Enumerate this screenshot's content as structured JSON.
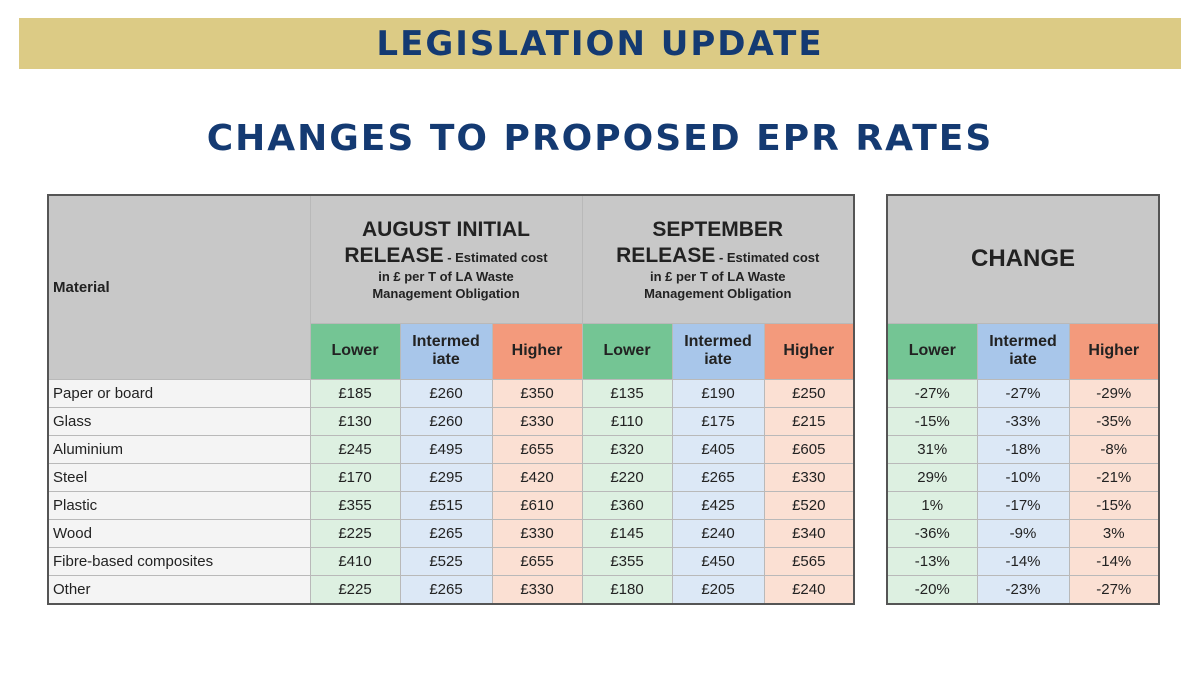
{
  "banner": "LEGISLATION UPDATE",
  "title": "CHANGES TO PROPOSED EPR RATES",
  "table": {
    "material_header": "Material",
    "august": {
      "line1": "AUGUST INITIAL",
      "line2": "RELEASE",
      "line2_suffix": " - Estimated cost",
      "line3": "in £ per T of LA Waste",
      "line4": "Management Obligation"
    },
    "september": {
      "line1": "SEPTEMBER",
      "line2": "RELEASE",
      "line2_suffix": " - Estimated cost",
      "line3": "in £ per T of LA Waste",
      "line4": "Management Obligation"
    },
    "change_header": "CHANGE",
    "sub": {
      "lower": "Lower",
      "intermediate_1": "Intermed",
      "intermediate_2": "iate",
      "higher": "Higher"
    },
    "rows": [
      {
        "material": "Paper or board",
        "aug": [
          "£185",
          "£260",
          "£350"
        ],
        "sep": [
          "£135",
          "£190",
          "£250"
        ],
        "change": [
          "-27%",
          "-27%",
          "-29%"
        ]
      },
      {
        "material": "Glass",
        "aug": [
          "£130",
          "£260",
          "£330"
        ],
        "sep": [
          "£110",
          "£175",
          "£215"
        ],
        "change": [
          "-15%",
          "-33%",
          "-35%"
        ]
      },
      {
        "material": "Aluminium",
        "aug": [
          "£245",
          "£495",
          "£655"
        ],
        "sep": [
          "£320",
          "£405",
          "£605"
        ],
        "change": [
          "31%",
          "-18%",
          "-8%"
        ]
      },
      {
        "material": "Steel",
        "aug": [
          "£170",
          "£295",
          "£420"
        ],
        "sep": [
          "£220",
          "£265",
          "£330"
        ],
        "change": [
          "29%",
          "-10%",
          "-21%"
        ]
      },
      {
        "material": "Plastic",
        "aug": [
          "£355",
          "£515",
          "£610"
        ],
        "sep": [
          "£360",
          "£425",
          "£520"
        ],
        "change": [
          "1%",
          "-17%",
          "-15%"
        ]
      },
      {
        "material": "Wood",
        "aug": [
          "£225",
          "£265",
          "£330"
        ],
        "sep": [
          "£145",
          "£240",
          "£340"
        ],
        "change": [
          "-36%",
          "-9%",
          "3%"
        ]
      },
      {
        "material": "Fibre-based composites",
        "aug": [
          "£410",
          "£525",
          "£655"
        ],
        "sep": [
          "£355",
          "£450",
          "£565"
        ],
        "change": [
          "-13%",
          "-14%",
          "-14%"
        ]
      },
      {
        "material": "Other",
        "aug": [
          "£225",
          "£265",
          "£330"
        ],
        "sep": [
          "£180",
          "£205",
          "£240"
        ],
        "change": [
          "-20%",
          "-23%",
          "-27%"
        ]
      }
    ]
  }
}
